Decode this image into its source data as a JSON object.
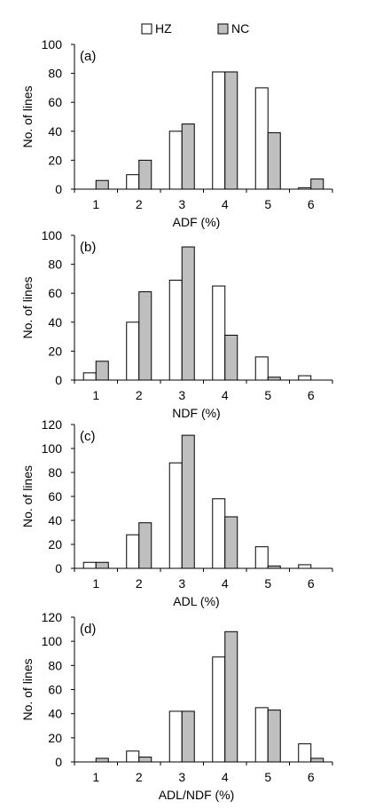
{
  "legend": {
    "items": [
      {
        "label": "HZ",
        "color": "#ffffff"
      },
      {
        "label": "NC",
        "color": "#bfbfbf"
      }
    ]
  },
  "chart_data": [
    {
      "type": "bar",
      "panel_label": "(a)",
      "xlabel": "ADF (%)",
      "ylabel": "No. of lines",
      "categories": [
        "1",
        "2",
        "3",
        "4",
        "5",
        "6"
      ],
      "ylim": [
        0,
        100
      ],
      "yticks": [
        0,
        20,
        40,
        60,
        80,
        100
      ],
      "series": [
        {
          "name": "HZ",
          "color": "#ffffff",
          "values": [
            0,
            10,
            40,
            81,
            70,
            1
          ]
        },
        {
          "name": "NC",
          "color": "#bfbfbf",
          "values": [
            6,
            20,
            45,
            81,
            39,
            7
          ]
        }
      ]
    },
    {
      "type": "bar",
      "panel_label": "(b)",
      "xlabel": "NDF (%)",
      "ylabel": "No. of lines",
      "categories": [
        "1",
        "2",
        "3",
        "4",
        "5",
        "6"
      ],
      "ylim": [
        0,
        100
      ],
      "yticks": [
        0,
        20,
        40,
        60,
        80,
        100
      ],
      "series": [
        {
          "name": "HZ",
          "color": "#ffffff",
          "values": [
            5,
            40,
            69,
            65,
            16,
            3
          ]
        },
        {
          "name": "NC",
          "color": "#bfbfbf",
          "values": [
            13,
            61,
            92,
            31,
            2,
            0
          ]
        }
      ]
    },
    {
      "type": "bar",
      "panel_label": "(c)",
      "xlabel": "ADL (%)",
      "ylabel": "No. of lines",
      "categories": [
        "1",
        "2",
        "3",
        "4",
        "5",
        "6"
      ],
      "ylim": [
        0,
        120
      ],
      "yticks": [
        0,
        20,
        40,
        60,
        80,
        100,
        120
      ],
      "series": [
        {
          "name": "HZ",
          "color": "#ffffff",
          "values": [
            5,
            28,
            88,
            58,
            18,
            3
          ]
        },
        {
          "name": "NC",
          "color": "#bfbfbf",
          "values": [
            5,
            38,
            111,
            43,
            2,
            0
          ]
        }
      ]
    },
    {
      "type": "bar",
      "panel_label": "(d)",
      "xlabel": "ADL/NDF (%)",
      "ylabel": "No. of lines",
      "categories": [
        "1",
        "2",
        "3",
        "4",
        "5",
        "6"
      ],
      "ylim": [
        0,
        120
      ],
      "yticks": [
        0,
        20,
        40,
        60,
        80,
        100,
        120
      ],
      "series": [
        {
          "name": "HZ",
          "color": "#ffffff",
          "values": [
            0,
            9,
            42,
            87,
            45,
            15
          ]
        },
        {
          "name": "NC",
          "color": "#bfbfbf",
          "values": [
            3,
            4,
            42,
            108,
            43,
            3
          ]
        }
      ]
    }
  ]
}
